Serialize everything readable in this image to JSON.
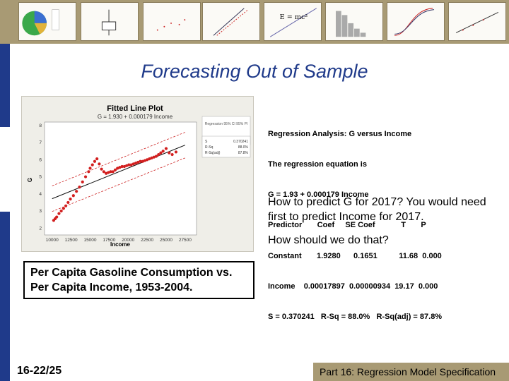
{
  "title": "Forecasting Out of Sample",
  "fitted_plot": {
    "title": "Fitted Line Plot",
    "equation": "G = 1.930 + 0.000179 Income",
    "legend_header": "Regression 95% CI 95% PI",
    "stats_labels": [
      "S",
      "R-Sq",
      "R-Sq(adj)"
    ],
    "stats_values": [
      "0.370241",
      "88.0%",
      "87.8%"
    ],
    "xlabel": "Income",
    "ylabel": "G",
    "xticks": [
      "10000",
      "12500",
      "15000",
      "17500",
      "20000",
      "22500",
      "25000",
      "27500"
    ],
    "yticks": [
      "2",
      "3",
      "4",
      "5",
      "6",
      "7",
      "8"
    ]
  },
  "chart_data": {
    "type": "scatter",
    "title": "Fitted Line Plot",
    "xlabel": "Income",
    "ylabel": "G",
    "xlim": [
      9000,
      29000
    ],
    "ylim": [
      1.6,
      8.2
    ],
    "fit": {
      "intercept": 1.93,
      "slope": 0.000179
    },
    "x": [
      10200,
      10400,
      10600,
      10900,
      11200,
      11500,
      11800,
      12100,
      12400,
      12800,
      13200,
      13600,
      14000,
      14400,
      14800,
      15000,
      15300,
      15600,
      15900,
      16200,
      16500,
      16800,
      17100,
      17400,
      17700,
      18000,
      18300,
      18600,
      18900,
      19200,
      19500,
      19800,
      20100,
      20400,
      20700,
      21000,
      21300,
      21600,
      21900,
      22200,
      22500,
      22800,
      23100,
      23400,
      23700,
      24000,
      24300,
      24600,
      25000,
      25400,
      25800,
      26300
    ],
    "y": [
      2.45,
      2.55,
      2.65,
      2.85,
      3.0,
      3.15,
      3.3,
      3.5,
      3.7,
      3.9,
      4.15,
      4.4,
      4.7,
      5.0,
      5.3,
      5.5,
      5.7,
      5.9,
      6.05,
      5.75,
      5.45,
      5.3,
      5.2,
      5.25,
      5.3,
      5.3,
      5.4,
      5.5,
      5.55,
      5.6,
      5.6,
      5.65,
      5.7,
      5.7,
      5.75,
      5.8,
      5.85,
      5.9,
      5.9,
      5.95,
      6.0,
      6.05,
      6.1,
      6.15,
      6.2,
      6.3,
      6.4,
      6.5,
      6.65,
      6.4,
      6.3,
      6.45
    ]
  },
  "regression_text": [
    "Regression Analysis: G versus Income",
    "The regression equation is",
    "G = 1.93 + 0.000179 Income",
    "Predictor       Coef     SE Coef            T       P",
    "Constant       1.9280      0.1651          11.68  0.000",
    "Income    0.00017897  0.00000934  19.17  0.000",
    "S = 0.370241   R-Sq = 88.0%   R-Sq(adj) = 87.8%"
  ],
  "question": "How to predict G for 2017?  You would need first to predict Income for 2017.",
  "question2": "How should we do that?",
  "caption": "Per Capita Gasoline Consumption vs. Per Capita Income, 1953-2004.",
  "slide_number": "16-22/25",
  "footer": "Part 16: Regression Model Specification",
  "colors": {
    "banner": "#a89a74",
    "title": "#1f3a8a",
    "points": "#d21f1f",
    "leftbar": "#1f3a8a"
  }
}
